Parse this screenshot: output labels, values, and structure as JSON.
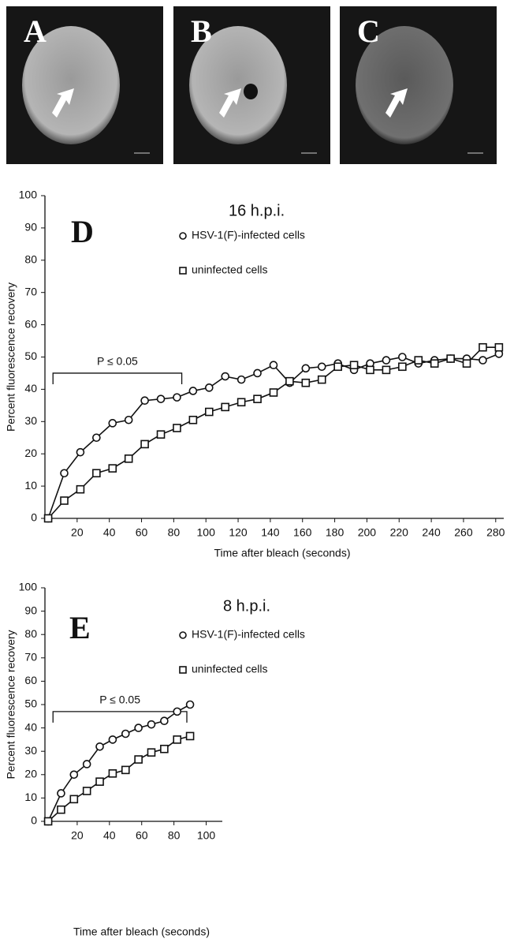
{
  "panels": [
    {
      "label": "A"
    },
    {
      "label": "B"
    },
    {
      "label": "C"
    }
  ],
  "chart_data": [
    {
      "type": "line",
      "panel_label": "D",
      "title": "16 h.p.i.",
      "xlabel": "Time after bleach (seconds)",
      "ylabel": "Percent fluorescence recovery",
      "annotation": "P ≤ 0.05",
      "xlim": [
        0,
        285
      ],
      "ylim": [
        0,
        100
      ],
      "xticks": [
        20,
        40,
        60,
        80,
        100,
        120,
        140,
        160,
        180,
        200,
        220,
        240,
        260,
        280
      ],
      "yticks": [
        0,
        10,
        20,
        30,
        40,
        50,
        60,
        70,
        80,
        90,
        100
      ],
      "x": [
        2,
        12,
        22,
        32,
        42,
        52,
        62,
        72,
        82,
        92,
        102,
        112,
        122,
        132,
        142,
        152,
        162,
        172,
        182,
        192,
        202,
        212,
        222,
        232,
        242,
        252,
        262,
        272,
        282
      ],
      "series": [
        {
          "name": "HSV-1(F)-infected cells",
          "color": "#111111",
          "marker": "circle",
          "values": [
            0,
            14,
            20.5,
            25,
            29.5,
            30.5,
            36.5,
            37,
            37.5,
            39.5,
            40.5,
            44,
            43,
            45,
            47.5,
            42,
            46.5,
            47,
            48,
            46,
            48,
            49,
            50,
            48,
            49,
            49.5,
            49.5,
            49,
            51
          ]
        },
        {
          "name": "uninfected cells",
          "color": "#111111",
          "marker": "square",
          "values": [
            0,
            5.5,
            9,
            14,
            15.5,
            18.5,
            23,
            26,
            28,
            30.5,
            33,
            34.5,
            36,
            37,
            39,
            42.5,
            42,
            43,
            47,
            47.5,
            46,
            46,
            47,
            49,
            48,
            49.5,
            48,
            53,
            53
          ]
        }
      ]
    },
    {
      "type": "line",
      "panel_label": "E",
      "title": "8 h.p.i.",
      "xlabel": "Time after bleach (seconds)",
      "ylabel": "Percent fluorescence recovery",
      "annotation": "P ≤ 0.05",
      "xlim": [
        0,
        110
      ],
      "ylim": [
        0,
        100
      ],
      "xticks": [
        20,
        40,
        60,
        80,
        100
      ],
      "yticks": [
        0,
        10,
        20,
        30,
        40,
        50,
        60,
        70,
        80,
        90,
        100
      ],
      "x": [
        2,
        10,
        18,
        26,
        34,
        42,
        50,
        58,
        66,
        74,
        82,
        90
      ],
      "series": [
        {
          "name": "HSV-1(F)-infected cells",
          "color": "#111111",
          "marker": "circle",
          "values": [
            0,
            12,
            20,
            24.5,
            32,
            35,
            37.5,
            40,
            41.5,
            43,
            47,
            50
          ]
        },
        {
          "name": "uninfected cells",
          "color": "#111111",
          "marker": "square",
          "values": [
            0,
            5,
            9.5,
            13,
            17,
            20.5,
            22,
            26.5,
            29.5,
            31,
            35,
            36.5
          ]
        }
      ]
    }
  ]
}
